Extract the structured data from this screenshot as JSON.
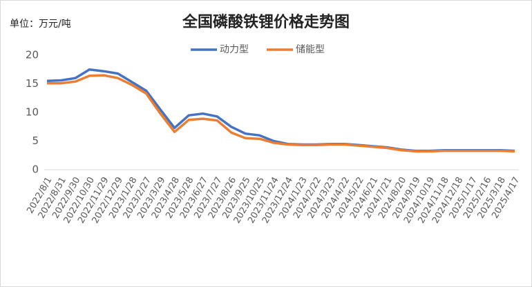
{
  "chart_data": {
    "type": "line",
    "title": "全国磷酸铁锂价格走势图",
    "subtitle": "单位：万元/吨",
    "categories": [
      "2022/8/1",
      "2022/8/31",
      "2022/9/30",
      "2022/10/30",
      "2022/11/29",
      "2022/12/29",
      "2023/1/28",
      "2023/2/27",
      "2023/3/29",
      "2023/4/28",
      "2023/5/28",
      "2023/6/27",
      "2023/7/27",
      "2023/8/26",
      "2023/9/25",
      "2023/10/25",
      "2023/11/24",
      "2023/12/24",
      "2024/1/23",
      "2024/2/22",
      "2024/3/23",
      "2024/4/22",
      "2024/5/22",
      "2024/6/21",
      "2024/7/21",
      "2024/8/20",
      "2024/9/19",
      "2024/10/19",
      "2024/11/18",
      "2024/12/18",
      "2025/1/17",
      "2025/2/16",
      "2025/3/18",
      "2025/4/17"
    ],
    "series": [
      {
        "name": "动力型",
        "color": "#4472c4",
        "values": [
          15.5,
          15.6,
          16.0,
          17.5,
          17.2,
          16.8,
          15.3,
          13.8,
          10.5,
          7.3,
          9.5,
          9.8,
          9.3,
          7.5,
          6.3,
          6.0,
          5.0,
          4.5,
          4.4,
          4.4,
          4.5,
          4.5,
          4.3,
          4.1,
          3.9,
          3.5,
          3.3,
          3.3,
          3.4,
          3.4,
          3.4,
          3.4,
          3.4,
          3.3
        ]
      },
      {
        "name": "储能型",
        "color": "#ed7d31",
        "values": [
          15.1,
          15.1,
          15.4,
          16.4,
          16.5,
          16.0,
          14.8,
          13.3,
          9.8,
          6.6,
          8.7,
          8.9,
          8.6,
          6.5,
          5.5,
          5.4,
          4.7,
          4.4,
          4.3,
          4.3,
          4.4,
          4.4,
          4.2,
          4.0,
          3.8,
          3.4,
          3.2,
          3.2,
          3.3,
          3.3,
          3.3,
          3.3,
          3.3,
          3.2
        ]
      }
    ],
    "ylim": [
      0,
      20
    ],
    "yticks": [
      0,
      5,
      10,
      15,
      20
    ],
    "legend": "top"
  }
}
